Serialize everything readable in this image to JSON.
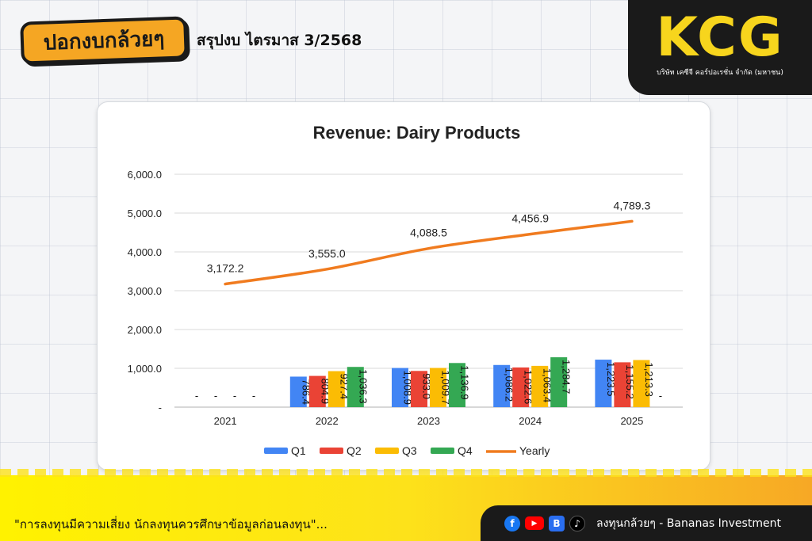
{
  "header": {
    "brand_logo_text": "ปอกงบกล้วยๆ",
    "title": "สรุปงบ ไตรมาส 3/2568"
  },
  "company": {
    "logo_text": "KCG",
    "full_name": "บริษัท เคซีจี คอร์ปอเรชั่น จำกัด (มหาชน)"
  },
  "footer": {
    "disclaimer": "\"การลงทุนมีความเสี่ยง นักลงทุนควรศึกษาข้อมูลก่อนลงทุน\"...",
    "channel_text": "ลงทุนกล้วยๆ - Bananas Investment",
    "social_icons": [
      "facebook-icon",
      "youtube-icon",
      "blockdit-icon",
      "tiktok-icon"
    ]
  },
  "chart_data": {
    "type": "bar",
    "title": "Revenue: Dairy Products",
    "categories": [
      "2021",
      "2022",
      "2023",
      "2024",
      "2025"
    ],
    "y_ticks": [
      "-",
      "1,000.0",
      "2,000.0",
      "3,000.0",
      "4,000.0",
      "5,000.0",
      "6,000.0"
    ],
    "ylim": [
      0,
      6000
    ],
    "series": [
      {
        "name": "Q1",
        "color": "#4285f4",
        "values": [
          null,
          786.4,
          1008.9,
          1086.2,
          1223.5
        ],
        "labels": [
          "-",
          "786.4",
          "1,008.9",
          "1,086.2",
          "1,223.5"
        ]
      },
      {
        "name": "Q2",
        "color": "#ea4335",
        "values": [
          null,
          804.9,
          933.0,
          1022.6,
          1155.2
        ],
        "labels": [
          "-",
          "804.9",
          "933.0",
          "1,022.6",
          "1,155.2"
        ]
      },
      {
        "name": "Q3",
        "color": "#fbbc04",
        "values": [
          null,
          927.4,
          1009.7,
          1063.4,
          1213.3
        ],
        "labels": [
          "-",
          "927.4",
          "1,009.7",
          "1,063.4",
          "1,213.3"
        ]
      },
      {
        "name": "Q4",
        "color": "#34a853",
        "values": [
          null,
          1036.3,
          1136.9,
          1284.7,
          null
        ],
        "labels": [
          "-",
          "1,036.3",
          "1,136.9",
          "1,284.7",
          "-"
        ]
      }
    ],
    "line_series": {
      "name": "Yearly",
      "color": "#f07b1f",
      "values": [
        3172.2,
        3555.0,
        4088.5,
        4456.9,
        4789.3
      ],
      "labels": [
        "3,172.2",
        "3,555.0",
        "4,088.5",
        "4,456.9",
        "4,789.3"
      ]
    },
    "legend": [
      "Q1",
      "Q2",
      "Q3",
      "Q4",
      "Yearly"
    ],
    "legend_position": "bottom"
  }
}
